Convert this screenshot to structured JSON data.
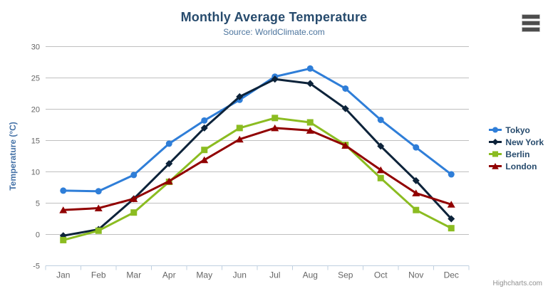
{
  "header": {
    "title": "Monthly Average Temperature",
    "subtitle": "Source: WorldClimate.com"
  },
  "credits": "Highcharts.com",
  "menu": {
    "icon": "hamburger-icon"
  },
  "chart_data": {
    "type": "line",
    "title": "Monthly Average Temperature",
    "subtitle": "Source: WorldClimate.com",
    "categories": [
      "Jan",
      "Feb",
      "Mar",
      "Apr",
      "May",
      "Jun",
      "Jul",
      "Aug",
      "Sep",
      "Oct",
      "Nov",
      "Dec"
    ],
    "xlabel": "",
    "ylabel": "Temperature (°C)",
    "ylim": [
      -5,
      30
    ],
    "ytick_interval": 5,
    "grid": true,
    "legend_position": "right",
    "series": [
      {
        "name": "Tokyo",
        "color": "#2f7ed8",
        "marker": "circle",
        "values": [
          7.0,
          6.9,
          9.5,
          14.5,
          18.2,
          21.5,
          25.2,
          26.5,
          23.3,
          18.3,
          13.9,
          9.6
        ]
      },
      {
        "name": "New York",
        "color": "#0d233a",
        "marker": "diamond",
        "values": [
          -0.2,
          0.8,
          5.7,
          11.3,
          17.0,
          22.0,
          24.8,
          24.1,
          20.1,
          14.1,
          8.6,
          2.5
        ]
      },
      {
        "name": "Berlin",
        "color": "#8bbc21",
        "marker": "square",
        "values": [
          -0.9,
          0.6,
          3.5,
          8.4,
          13.5,
          17.0,
          18.6,
          17.9,
          14.3,
          9.0,
          3.9,
          1.0
        ]
      },
      {
        "name": "London",
        "color": "#910000",
        "marker": "triangle",
        "values": [
          3.9,
          4.2,
          5.7,
          8.5,
          11.9,
          15.2,
          17.0,
          16.6,
          14.2,
          10.3,
          6.6,
          4.8
        ]
      }
    ],
    "style": {
      "grid_color": "#c0c0c0",
      "axis_line_color": "#c0d0e0",
      "axis_label_color": "#666666",
      "axis_title_color": "#4572a7",
      "title_color": "#274b6d",
      "subtitle_color": "#4d759e",
      "legend_text_color": "#274b6d",
      "credits_color": "#909090"
    }
  }
}
